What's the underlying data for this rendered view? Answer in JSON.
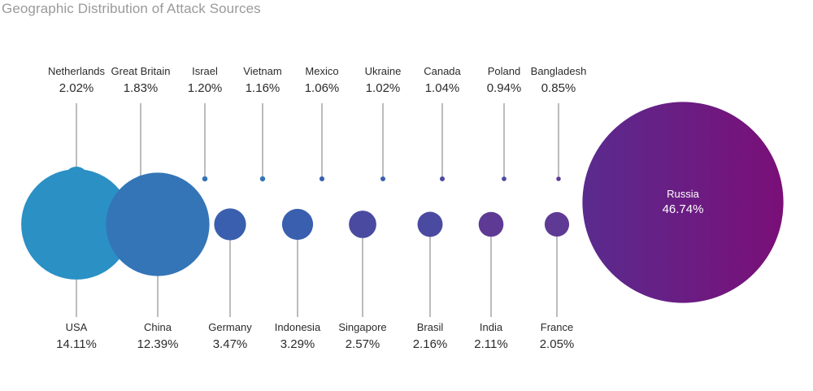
{
  "chart_data": {
    "type": "bubble",
    "title": "Geographic Distribution of Attack Sources",
    "unit": "%",
    "items": [
      {
        "country": "Netherlands",
        "value": 2.02,
        "label": "2.02%"
      },
      {
        "country": "Great Britain",
        "value": 1.83,
        "label": "1.83%"
      },
      {
        "country": "Israel",
        "value": 1.2,
        "label": "1.20%"
      },
      {
        "country": "Vietnam",
        "value": 1.16,
        "label": "1.16%"
      },
      {
        "country": "Mexico",
        "value": 1.06,
        "label": "1.06%"
      },
      {
        "country": "Ukraine",
        "value": 1.02,
        "label": "1.02%"
      },
      {
        "country": "Canada",
        "value": 1.04,
        "label": "1.04%"
      },
      {
        "country": "Poland",
        "value": 0.94,
        "label": "0.94%"
      },
      {
        "country": "Bangladesh",
        "value": 0.85,
        "label": "0.85%"
      },
      {
        "country": "USA",
        "value": 14.11,
        "label": "14.11%"
      },
      {
        "country": "China",
        "value": 12.39,
        "label": "12.39%"
      },
      {
        "country": "Germany",
        "value": 3.47,
        "label": "3.47%"
      },
      {
        "country": "Indonesia",
        "value": 3.29,
        "label": "3.29%"
      },
      {
        "country": "Singapore",
        "value": 2.57,
        "label": "2.57%"
      },
      {
        "country": "Brasil",
        "value": 2.16,
        "label": "2.16%"
      },
      {
        "country": "India",
        "value": 2.11,
        "label": "2.11%"
      },
      {
        "country": "France",
        "value": 2.05,
        "label": "2.05%"
      },
      {
        "country": "Russia",
        "value": 46.74,
        "label": "46.74%"
      }
    ]
  },
  "colors": {
    "title": "#9a9a9a",
    "text": "#2b2b2b",
    "leader": "#7a7a7a",
    "usa": "#2b90c4",
    "china": "#3475b7",
    "mid_blue": "#3a5fae",
    "mid_indigo": "#4a4aa0",
    "purple": "#5e3a95",
    "russia_left": "#5a2b8e",
    "russia_right": "#7a0f78"
  }
}
